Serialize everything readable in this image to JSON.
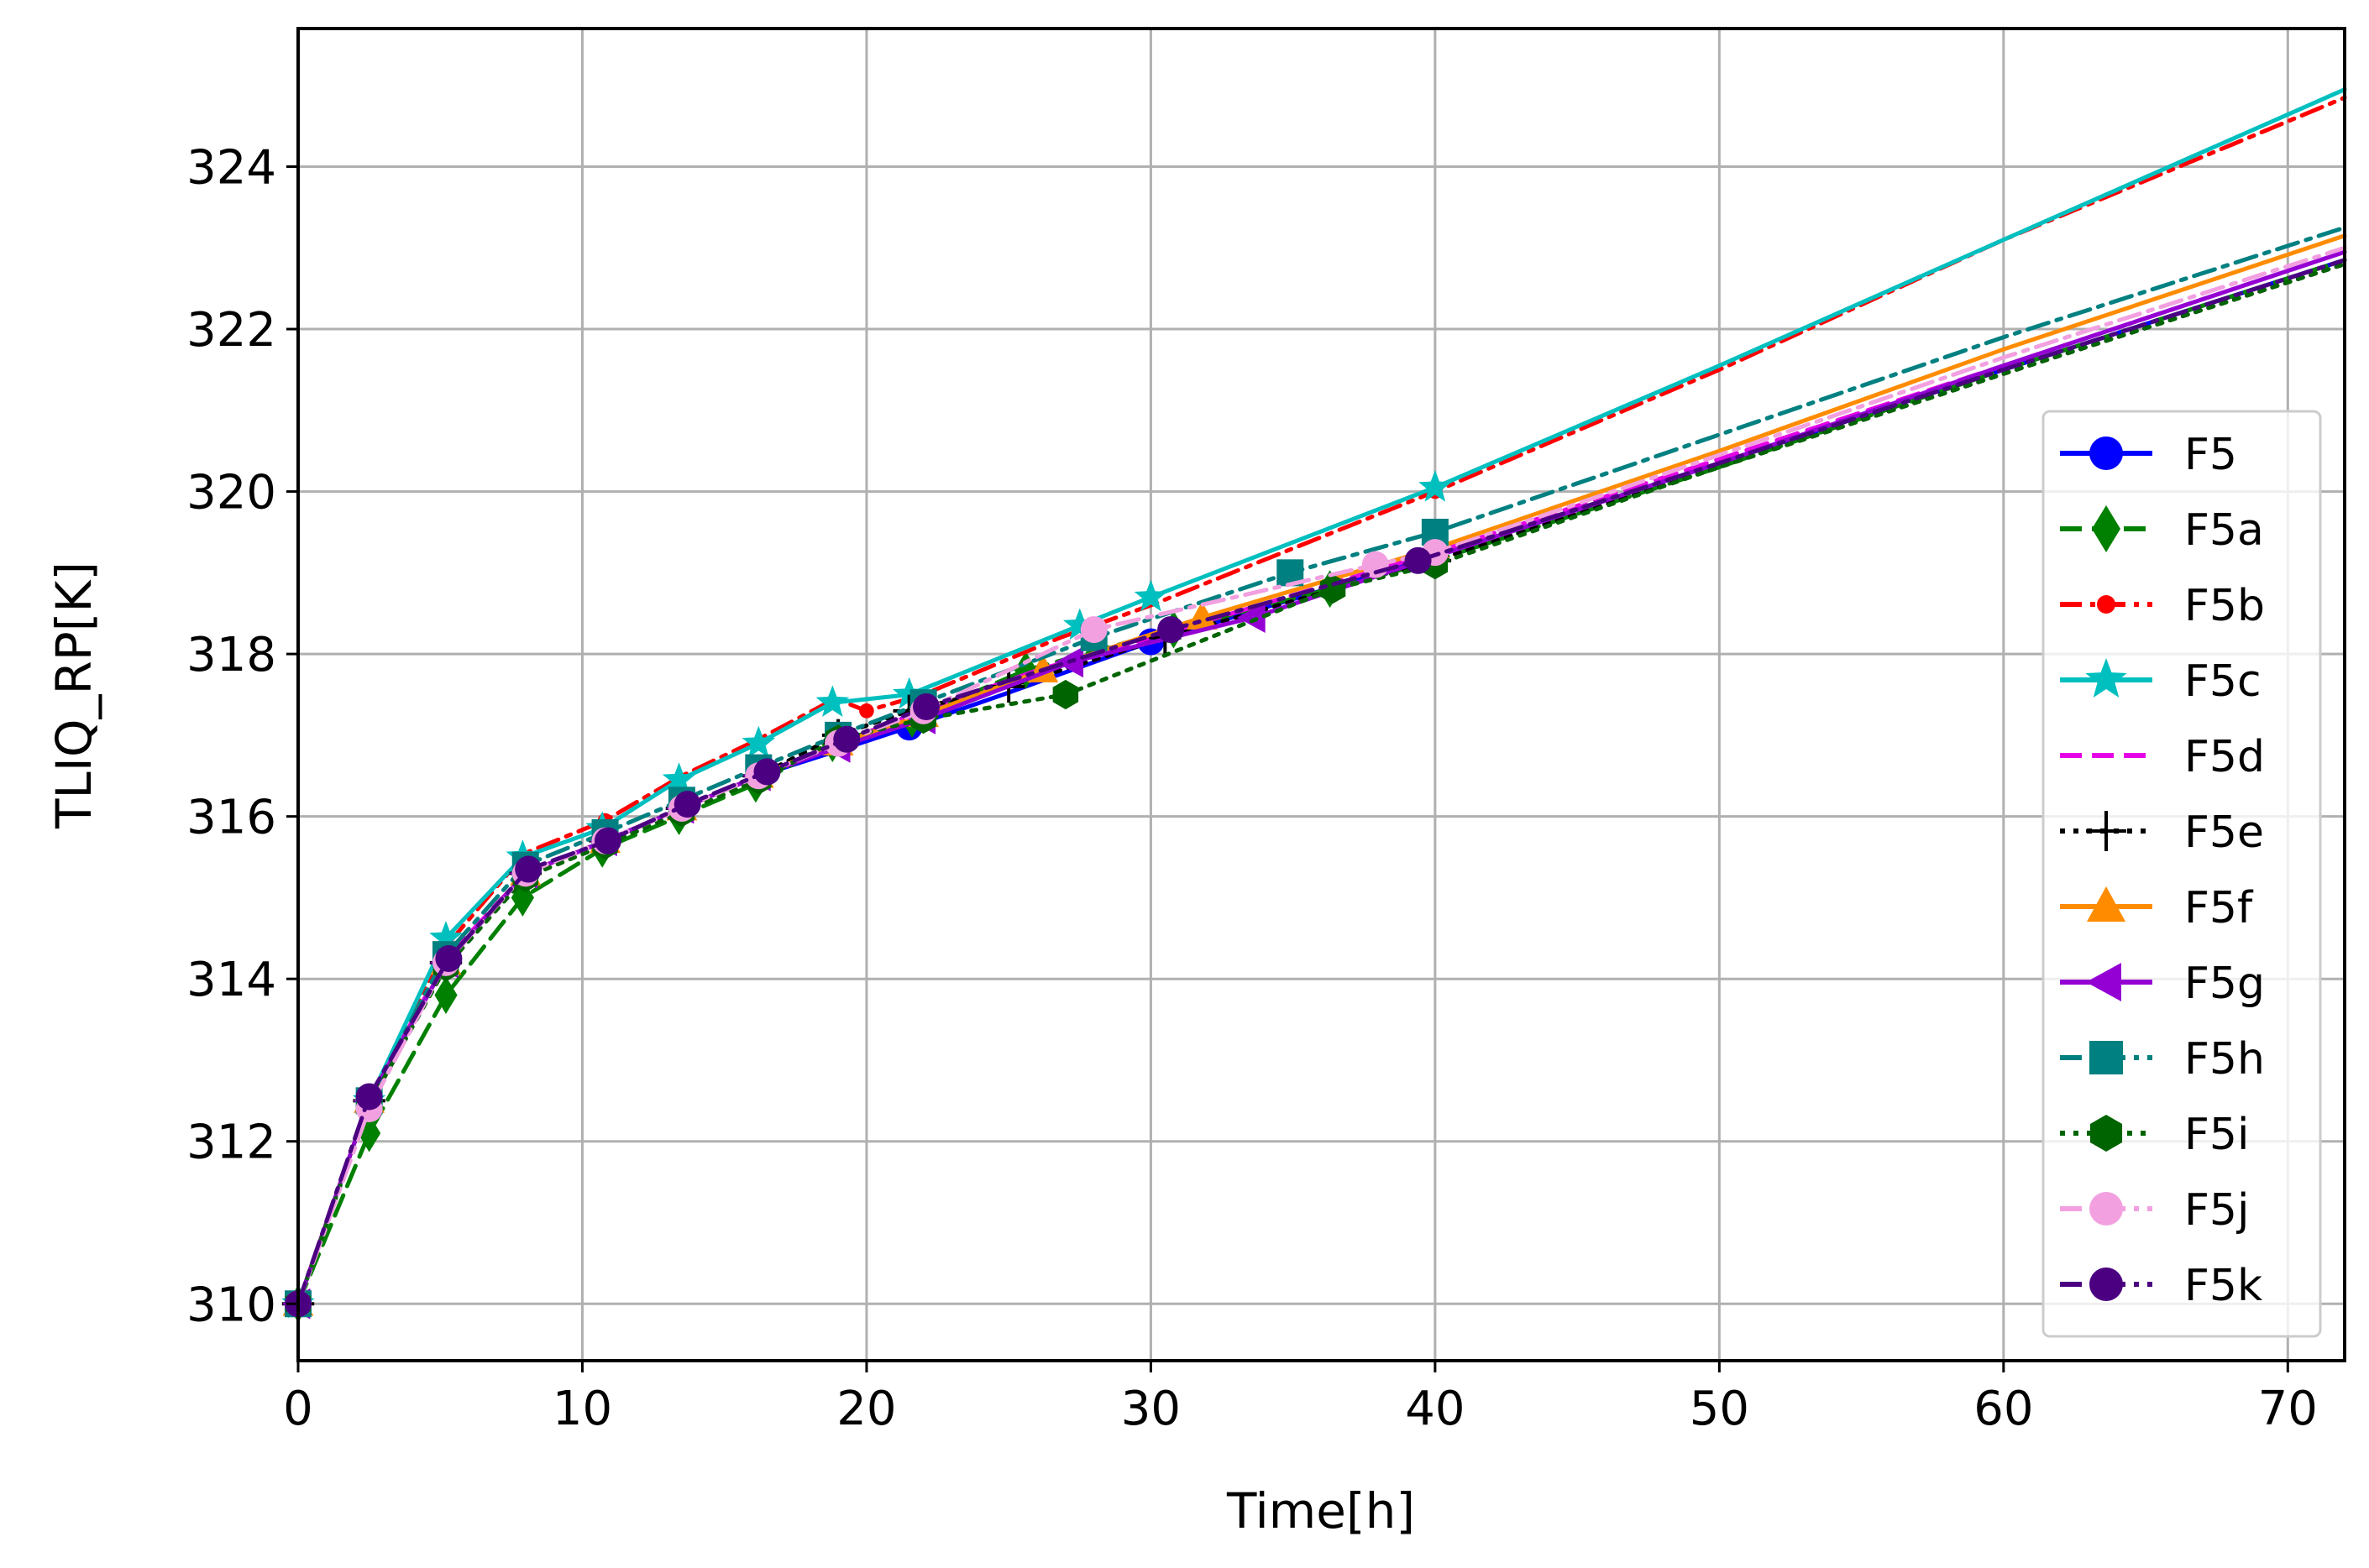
{
  "chart_data": {
    "type": "line",
    "title": "",
    "xlabel": "Time[h]",
    "ylabel": "TLIQ_RP[K]",
    "xlim": [
      0,
      72
    ],
    "ylim": [
      309.3,
      325.7
    ],
    "xticks": [
      0,
      10,
      20,
      30,
      40,
      50,
      60,
      70
    ],
    "yticks": [
      310,
      312,
      314,
      316,
      318,
      320,
      322,
      324
    ],
    "grid": true,
    "legend_position": "center-right",
    "series": [
      {
        "name": "F5",
        "color": "#0000ff",
        "dash": "solid",
        "marker": "circle",
        "marker_every": 2,
        "x": [
          0,
          2.5,
          5.2,
          8,
          10.8,
          13.5,
          16.2,
          18.9,
          21.5,
          24.8,
          30,
          40,
          50,
          60,
          72
        ],
        "y": [
          310.0,
          312.5,
          314.2,
          315.3,
          315.7,
          316.1,
          316.5,
          316.8,
          317.1,
          317.5,
          318.15,
          319.2,
          320.35,
          321.5,
          322.85
        ]
      },
      {
        "name": "F5a",
        "color": "#008000",
        "dash": "dashed",
        "marker": "diamond",
        "marker_every": 1,
        "x": [
          0,
          2.5,
          5.2,
          7.9,
          10.7,
          13.4,
          16.1,
          18.8,
          21.6,
          25.6,
          30.8,
          36.3,
          40,
          50,
          60,
          72
        ],
        "y": [
          310.0,
          312.1,
          313.8,
          315.0,
          315.6,
          316.0,
          316.4,
          316.9,
          317.2,
          317.8,
          318.3,
          318.8,
          319.15,
          320.3,
          321.5,
          322.85
        ]
      },
      {
        "name": "F5b",
        "color": "#ff0000",
        "dash": "dashdot",
        "marker": "dot",
        "marker_every": 4,
        "x": [
          0,
          2.5,
          5.2,
          8,
          10.8,
          13.5,
          16.2,
          18.9,
          20,
          22,
          26.8,
          30,
          40,
          50,
          60,
          72
        ],
        "y": [
          310.0,
          312.5,
          314.4,
          315.55,
          315.95,
          316.5,
          316.95,
          317.45,
          317.3,
          317.5,
          318.2,
          318.6,
          320.0,
          321.5,
          323.1,
          324.85
        ]
      },
      {
        "name": "F5c",
        "color": "#00bfbf",
        "dash": "solid",
        "marker": "star",
        "marker_every": 1,
        "x": [
          0,
          2.5,
          5.2,
          7.9,
          10.7,
          13.4,
          16.2,
          18.8,
          21.5,
          27.5,
          30,
          40,
          50,
          60,
          72
        ],
        "y": [
          310.0,
          312.5,
          314.5,
          315.5,
          315.85,
          316.45,
          316.9,
          317.4,
          317.5,
          318.35,
          318.7,
          320.05,
          321.55,
          323.1,
          324.95
        ]
      },
      {
        "name": "F5d",
        "color": "#e600e6",
        "dash": "dashed",
        "marker": "none",
        "marker_every": 1,
        "x": [
          0,
          2.5,
          5.2,
          8,
          10.8,
          13.5,
          16.2,
          19,
          22,
          26,
          30,
          40,
          50,
          60,
          72
        ],
        "y": [
          310.0,
          312.5,
          314.25,
          315.3,
          315.7,
          316.1,
          316.5,
          316.9,
          317.3,
          317.8,
          318.2,
          319.25,
          320.4,
          321.55,
          322.95
        ]
      },
      {
        "name": "F5e",
        "color": "#000000",
        "dash": "dotted",
        "marker": "plus",
        "marker_every": 1,
        "x": [
          0,
          2.5,
          5.2,
          8,
          10.8,
          13.5,
          16.2,
          19,
          21.5,
          25,
          30.5,
          40,
          50,
          60,
          72
        ],
        "y": [
          310.0,
          312.5,
          314.2,
          315.3,
          315.7,
          316.1,
          316.5,
          317.0,
          317.3,
          317.6,
          318.2,
          319.15,
          320.3,
          321.45,
          322.8
        ]
      },
      {
        "name": "F5f",
        "color": "#ff8c00",
        "dash": "solid",
        "marker": "triangle-up",
        "marker_every": 1,
        "x": [
          0,
          2.5,
          5.2,
          8,
          10.8,
          13.5,
          16.2,
          19,
          22,
          26.2,
          31.8,
          40,
          50,
          60,
          72
        ],
        "y": [
          310.0,
          312.5,
          314.2,
          315.3,
          315.7,
          316.1,
          316.5,
          316.9,
          317.25,
          317.8,
          318.45,
          319.3,
          320.5,
          321.75,
          323.15
        ]
      },
      {
        "name": "F5g",
        "color": "#9400d3",
        "dash": "solid",
        "marker": "triangle-left",
        "marker_every": 1,
        "x": [
          0,
          2.5,
          5.2,
          8,
          10.8,
          13.5,
          16.2,
          19,
          22,
          27.2,
          33.6,
          40,
          50,
          60,
          72
        ],
        "y": [
          310.0,
          312.5,
          314.2,
          315.3,
          315.7,
          316.1,
          316.5,
          316.85,
          317.2,
          317.9,
          318.45,
          319.2,
          320.35,
          321.55,
          322.95
        ]
      },
      {
        "name": "F5h",
        "color": "#008080",
        "dash": "dashdot",
        "marker": "square",
        "marker_every": 1,
        "x": [
          0,
          2.5,
          5.2,
          8,
          10.8,
          13.5,
          16.2,
          19,
          22,
          28,
          34.9,
          40,
          50,
          60,
          72
        ],
        "y": [
          310.0,
          312.5,
          314.3,
          315.4,
          315.8,
          316.2,
          316.6,
          317.0,
          317.4,
          318.2,
          319.0,
          319.5,
          320.7,
          321.9,
          323.25
        ]
      },
      {
        "name": "F5i",
        "color": "#006400",
        "dash": "dotted",
        "marker": "hexagon",
        "marker_every": 1,
        "x": [
          0,
          2.5,
          5.2,
          8,
          10.8,
          13.5,
          16.2,
          19,
          22,
          27,
          36.4,
          40,
          50,
          60,
          72
        ],
        "y": [
          310.0,
          312.45,
          314.15,
          315.25,
          315.65,
          316.05,
          316.45,
          316.95,
          317.2,
          317.5,
          318.8,
          319.1,
          320.3,
          321.45,
          322.8
        ]
      },
      {
        "name": "F5j",
        "color": "#f2a0e0",
        "dash": "dashdot",
        "marker": "circle",
        "marker_every": 1,
        "x": [
          0,
          2.5,
          5.2,
          8,
          10.8,
          13.5,
          16.2,
          19,
          22,
          28,
          37.9,
          40,
          50,
          60,
          72
        ],
        "y": [
          310.0,
          312.4,
          314.2,
          315.3,
          315.7,
          316.1,
          316.5,
          316.9,
          317.3,
          318.3,
          319.1,
          319.25,
          320.45,
          321.65,
          323.0
        ]
      },
      {
        "name": "F5k",
        "color": "#4b0082",
        "dash": "dashdot",
        "marker": "circle",
        "marker_every": 1,
        "x": [
          0,
          2.5,
          5.3,
          8.1,
          10.9,
          13.7,
          16.5,
          19.3,
          22.1,
          30.7,
          39.4,
          50,
          60,
          72
        ],
        "y": [
          310.0,
          312.55,
          314.25,
          315.35,
          315.7,
          316.15,
          316.55,
          316.95,
          317.35,
          318.3,
          319.15,
          320.35,
          321.5,
          322.85
        ]
      }
    ]
  }
}
